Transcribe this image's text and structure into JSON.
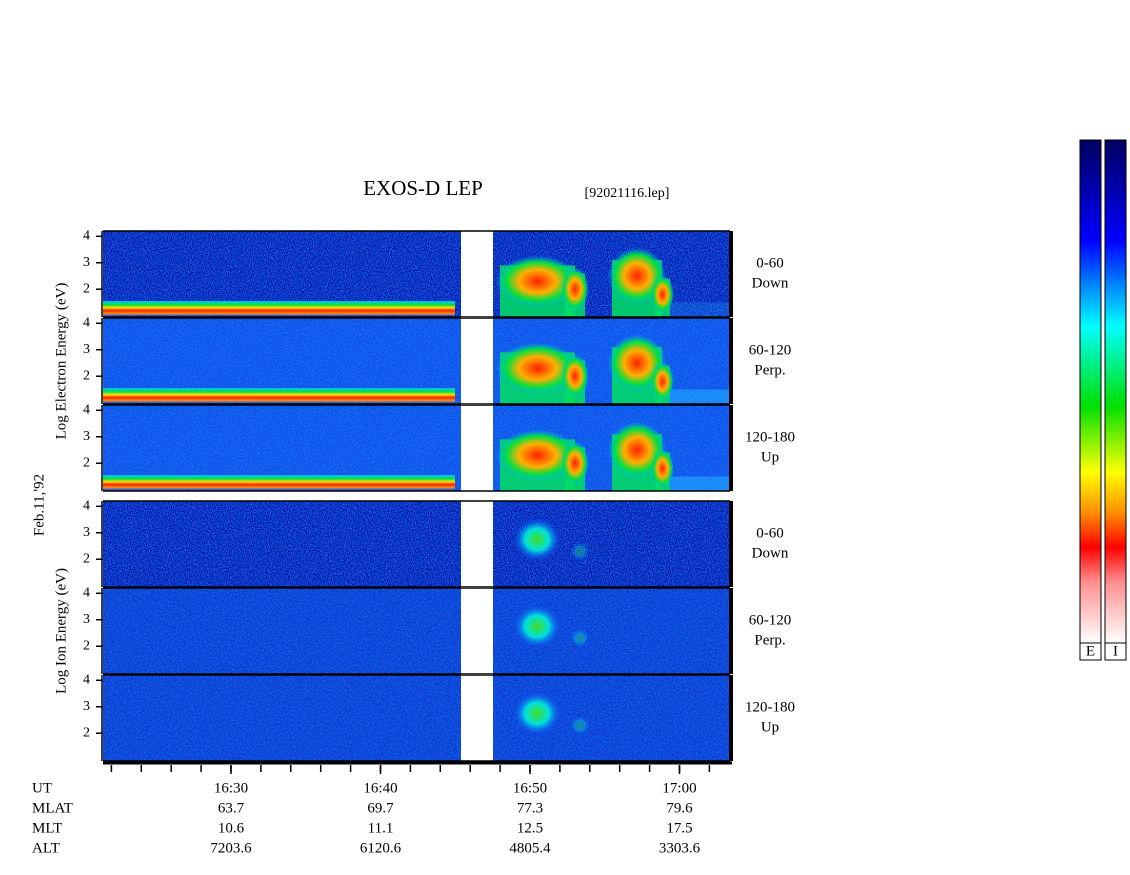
{
  "chart_data": {
    "type": "spectrogram",
    "title": "EXOS-D LEP",
    "subtitle": "[92021116.lep]",
    "date": "Feb.11,'92",
    "ylim": [
      0.95,
      4.2
    ],
    "yticks": [
      2,
      3,
      4
    ],
    "xticks": [
      "16:30",
      "16:40",
      "16:50",
      "17:00"
    ],
    "groups": [
      {
        "ylabel": "Log  Electron  Energy (eV)",
        "panels": [
          [
            "0-60",
            "Down"
          ],
          [
            "60-120",
            "Perp."
          ],
          [
            "120-180",
            "Up"
          ]
        ]
      },
      {
        "ylabel": "Log  Ion  Energy (eV)",
        "panels": [
          [
            "0-60",
            "Down"
          ],
          [
            "60-120",
            "Perp."
          ],
          [
            "120-180",
            "Up"
          ]
        ]
      }
    ],
    "orbit": {
      "time_label": "UT",
      "rows": [
        {
          "name": "MLAT",
          "values": [
            63.7,
            69.7,
            77.3,
            79.6
          ]
        },
        {
          "name": "MLT",
          "values": [
            10.6,
            11.1,
            12.5,
            17.5
          ]
        },
        {
          "name": "ALT",
          "values": [
            7203.6,
            6120.6,
            4805.4,
            3303.6
          ]
        }
      ]
    },
    "colorbars": [
      "E",
      "I"
    ]
  }
}
